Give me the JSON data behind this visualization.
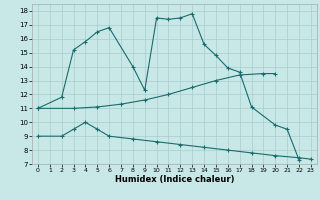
{
  "bg_color": "#c8e8e8",
  "grid_color": "#a8cccc",
  "line_color": "#1a6b6b",
  "xlabel": "Humidex (Indice chaleur)",
  "xlim": [
    -0.5,
    23.5
  ],
  "ylim": [
    7,
    18.5
  ],
  "line1_x": [
    0,
    2,
    3,
    4,
    5,
    6,
    8,
    9,
    10,
    11,
    12,
    13,
    14,
    15,
    16,
    17,
    18,
    20,
    21,
    22
  ],
  "line1_y": [
    11,
    11.8,
    15.2,
    15.8,
    16.5,
    16.8,
    14.0,
    12.3,
    17.5,
    17.4,
    17.5,
    17.8,
    15.6,
    14.8,
    13.9,
    13.6,
    11.1,
    9.8,
    9.5,
    7.3
  ],
  "line2_x": [
    0,
    3,
    5,
    7,
    9,
    11,
    13,
    15,
    17,
    19,
    20
  ],
  "line2_y": [
    11.0,
    11.0,
    11.1,
    11.3,
    11.6,
    12.0,
    12.5,
    13.0,
    13.4,
    13.5,
    13.5
  ],
  "line3_x": [
    0,
    2,
    3,
    4,
    5,
    6,
    8,
    10,
    12,
    14,
    16,
    18,
    20,
    22,
    23
  ],
  "line3_y": [
    9.0,
    9.0,
    9.5,
    10.0,
    9.5,
    9.0,
    8.8,
    8.6,
    8.4,
    8.2,
    8.0,
    7.8,
    7.6,
    7.45,
    7.35
  ]
}
